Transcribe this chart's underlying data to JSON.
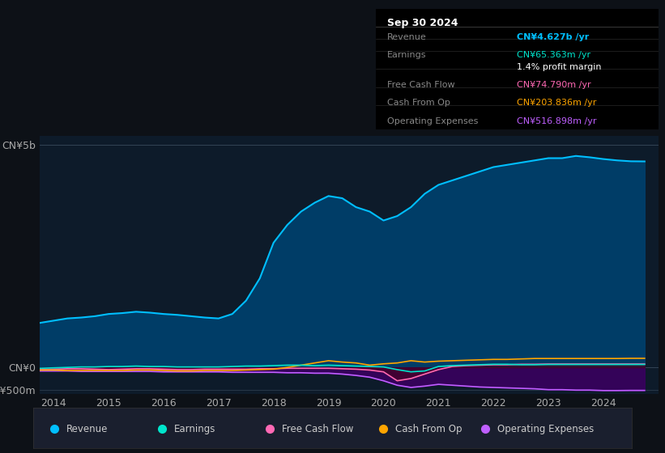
{
  "bg_color": "#0d1117",
  "plot_bg_color": "#0d1b2a",
  "title_box": {
    "date": "Sep 30 2024",
    "rows": [
      {
        "label": "Revenue",
        "value": "CN¥4.627b /yr",
        "value_color": "#00bfff"
      },
      {
        "label": "Earnings",
        "value": "CN¥65.363m /yr",
        "value_color": "#00e5cc"
      },
      {
        "label": "",
        "value": "1.4% profit margin",
        "value_color": "#ffffff"
      },
      {
        "label": "Free Cash Flow",
        "value": "CN¥74.790m /yr",
        "value_color": "#ff69b4"
      },
      {
        "label": "Cash From Op",
        "value": "CN¥203.836m /yr",
        "value_color": "#ffa500"
      },
      {
        "label": "Operating Expenses",
        "value": "CN¥516.898m /yr",
        "value_color": "#bf5fff"
      }
    ]
  },
  "series": {
    "Revenue": {
      "color": "#00bfff",
      "fill_color": "#003f6b",
      "x": [
        2013.75,
        2014.0,
        2014.25,
        2014.5,
        2014.75,
        2015.0,
        2015.25,
        2015.5,
        2015.75,
        2016.0,
        2016.25,
        2016.5,
        2016.75,
        2017.0,
        2017.25,
        2017.5,
        2017.75,
        2018.0,
        2018.25,
        2018.5,
        2018.75,
        2019.0,
        2019.25,
        2019.5,
        2019.75,
        2020.0,
        2020.25,
        2020.5,
        2020.75,
        2021.0,
        2021.25,
        2021.5,
        2021.75,
        2022.0,
        2022.25,
        2022.5,
        2022.75,
        2023.0,
        2023.25,
        2023.5,
        2023.75,
        2024.0,
        2024.25,
        2024.5,
        2024.75
      ],
      "y": [
        1.0,
        1.05,
        1.1,
        1.12,
        1.15,
        1.2,
        1.22,
        1.25,
        1.23,
        1.2,
        1.18,
        1.15,
        1.12,
        1.1,
        1.2,
        1.5,
        2.0,
        2.8,
        3.2,
        3.5,
        3.7,
        3.85,
        3.8,
        3.6,
        3.5,
        3.3,
        3.4,
        3.6,
        3.9,
        4.1,
        4.2,
        4.3,
        4.4,
        4.5,
        4.55,
        4.6,
        4.65,
        4.7,
        4.7,
        4.75,
        4.72,
        4.68,
        4.65,
        4.63,
        4.627
      ]
    },
    "Earnings": {
      "color": "#00e5cc",
      "x": [
        2013.75,
        2014.0,
        2014.25,
        2014.5,
        2014.75,
        2015.0,
        2015.25,
        2015.5,
        2015.75,
        2016.0,
        2016.25,
        2016.5,
        2016.75,
        2017.0,
        2017.25,
        2017.5,
        2017.75,
        2018.0,
        2018.25,
        2018.5,
        2018.75,
        2019.0,
        2019.25,
        2019.5,
        2019.75,
        2020.0,
        2020.25,
        2020.5,
        2020.75,
        2021.0,
        2021.25,
        2021.5,
        2021.75,
        2022.0,
        2022.25,
        2022.5,
        2022.75,
        2023.0,
        2023.25,
        2023.5,
        2023.75,
        2024.0,
        2024.25,
        2024.5,
        2024.75
      ],
      "y": [
        -0.02,
        -0.01,
        0.0,
        0.01,
        0.01,
        0.02,
        0.02,
        0.03,
        0.02,
        0.02,
        0.01,
        0.01,
        0.01,
        0.01,
        0.02,
        0.03,
        0.03,
        0.04,
        0.05,
        0.05,
        0.04,
        0.05,
        0.04,
        0.03,
        0.02,
        0.01,
        -0.05,
        -0.1,
        -0.08,
        0.02,
        0.04,
        0.05,
        0.06,
        0.07,
        0.07,
        0.06,
        0.06,
        0.065,
        0.065,
        0.065,
        0.065,
        0.065,
        0.065,
        0.065,
        0.065
      ]
    },
    "FreeCashFlow": {
      "color": "#ff69b4",
      "fill_color": "#4a0020",
      "x": [
        2013.75,
        2014.0,
        2014.25,
        2014.5,
        2014.75,
        2015.0,
        2015.25,
        2015.5,
        2015.75,
        2016.0,
        2016.25,
        2016.5,
        2016.75,
        2017.0,
        2017.25,
        2017.5,
        2017.75,
        2018.0,
        2018.25,
        2018.5,
        2018.75,
        2019.0,
        2019.25,
        2019.5,
        2019.75,
        2020.0,
        2020.25,
        2020.5,
        2020.75,
        2021.0,
        2021.25,
        2021.5,
        2021.75,
        2022.0,
        2022.25,
        2022.5,
        2022.75,
        2023.0,
        2023.25,
        2023.5,
        2023.75,
        2024.0,
        2024.25,
        2024.5,
        2024.75
      ],
      "y": [
        -0.05,
        -0.04,
        -0.03,
        -0.03,
        -0.04,
        -0.05,
        -0.04,
        -0.03,
        -0.03,
        -0.04,
        -0.05,
        -0.05,
        -0.04,
        -0.04,
        -0.04,
        -0.04,
        -0.03,
        -0.03,
        -0.02,
        -0.02,
        -0.02,
        -0.02,
        -0.03,
        -0.04,
        -0.06,
        -0.1,
        -0.3,
        -0.25,
        -0.15,
        -0.05,
        0.02,
        0.04,
        0.05,
        0.06,
        0.06,
        0.07,
        0.07,
        0.075,
        0.075,
        0.075,
        0.075,
        0.075,
        0.075,
        0.075,
        0.075
      ]
    },
    "CashFromOp": {
      "color": "#ffa500",
      "x": [
        2013.75,
        2014.0,
        2014.25,
        2014.5,
        2014.75,
        2015.0,
        2015.25,
        2015.5,
        2015.75,
        2016.0,
        2016.25,
        2016.5,
        2016.75,
        2017.0,
        2017.25,
        2017.5,
        2017.75,
        2018.0,
        2018.25,
        2018.5,
        2018.75,
        2019.0,
        2019.25,
        2019.5,
        2019.75,
        2020.0,
        2020.25,
        2020.5,
        2020.75,
        2021.0,
        2021.25,
        2021.5,
        2021.75,
        2022.0,
        2022.25,
        2022.5,
        2022.75,
        2023.0,
        2023.25,
        2023.5,
        2023.75,
        2024.0,
        2024.25,
        2024.5,
        2024.75
      ],
      "y": [
        -0.06,
        -0.06,
        -0.07,
        -0.07,
        -0.07,
        -0.07,
        -0.07,
        -0.06,
        -0.06,
        -0.07,
        -0.08,
        -0.08,
        -0.07,
        -0.07,
        -0.07,
        -0.06,
        -0.05,
        -0.04,
        0.0,
        0.05,
        0.1,
        0.15,
        0.12,
        0.1,
        0.05,
        0.08,
        0.1,
        0.15,
        0.12,
        0.14,
        0.15,
        0.16,
        0.17,
        0.18,
        0.18,
        0.19,
        0.2,
        0.2,
        0.2,
        0.2,
        0.2,
        0.2,
        0.2,
        0.204,
        0.204
      ]
    },
    "OperatingExpenses": {
      "color": "#bf5fff",
      "fill_color": "#3a0060",
      "x": [
        2013.75,
        2014.0,
        2014.25,
        2014.5,
        2014.75,
        2015.0,
        2015.25,
        2015.5,
        2015.75,
        2016.0,
        2016.25,
        2016.5,
        2016.75,
        2017.0,
        2017.25,
        2017.5,
        2017.75,
        2018.0,
        2018.25,
        2018.5,
        2018.75,
        2019.0,
        2019.25,
        2019.5,
        2019.75,
        2020.0,
        2020.25,
        2020.5,
        2020.75,
        2021.0,
        2021.25,
        2021.5,
        2021.75,
        2022.0,
        2022.25,
        2022.5,
        2022.75,
        2023.0,
        2023.25,
        2023.5,
        2023.75,
        2024.0,
        2024.25,
        2024.5,
        2024.75
      ],
      "y": [
        -0.08,
        -0.08,
        -0.08,
        -0.09,
        -0.09,
        -0.09,
        -0.09,
        -0.09,
        -0.09,
        -0.1,
        -0.1,
        -0.1,
        -0.1,
        -0.1,
        -0.11,
        -0.11,
        -0.11,
        -0.11,
        -0.12,
        -0.12,
        -0.13,
        -0.13,
        -0.15,
        -0.18,
        -0.22,
        -0.3,
        -0.4,
        -0.45,
        -0.42,
        -0.38,
        -0.4,
        -0.42,
        -0.44,
        -0.45,
        -0.46,
        -0.47,
        -0.48,
        -0.5,
        -0.5,
        -0.51,
        -0.51,
        -0.52,
        -0.52,
        -0.517,
        -0.517
      ]
    }
  },
  "xlim": [
    2013.75,
    2025.0
  ],
  "ylim": [
    -0.6,
    5.2
  ],
  "xticks": [
    2014,
    2015,
    2016,
    2017,
    2018,
    2019,
    2020,
    2021,
    2022,
    2023,
    2024
  ],
  "legend": [
    {
      "label": "Revenue",
      "color": "#00bfff"
    },
    {
      "label": "Earnings",
      "color": "#00e5cc"
    },
    {
      "label": "Free Cash Flow",
      "color": "#ff69b4"
    },
    {
      "label": "Cash From Op",
      "color": "#ffa500"
    },
    {
      "label": "Operating Expenses",
      "color": "#bf5fff"
    }
  ],
  "legend_bg": "#1a1f2e",
  "legend_border": "#333333"
}
